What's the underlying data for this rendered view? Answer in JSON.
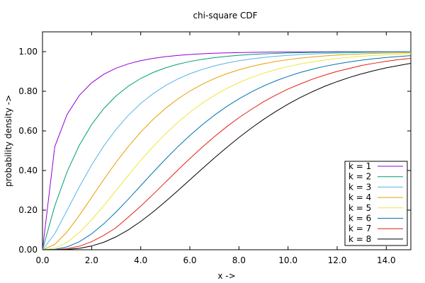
{
  "chart_data": {
    "type": "line",
    "title": "chi-square CDF",
    "xlabel": "x ->",
    "ylabel": "probability density ->",
    "xlim": [
      0,
      15
    ],
    "ylim": [
      0,
      1.1
    ],
    "x_ticks": [
      "0.0",
      "2.0",
      "4.0",
      "6.0",
      "8.0",
      "10.0",
      "12.0",
      "14.0"
    ],
    "y_ticks": [
      "0.00",
      "0.20",
      "0.40",
      "0.60",
      "0.80",
      "1.00"
    ],
    "grid": false,
    "legend_position": "bottom-right",
    "x": [
      0.0,
      0.5,
      1.0,
      1.5,
      2.0,
      2.5,
      3.0,
      3.5,
      4.0,
      4.5,
      5.0,
      5.5,
      6.0,
      6.5,
      7.0,
      7.5,
      8.0,
      8.5,
      9.0,
      9.5,
      10.0,
      10.5,
      11.0,
      11.5,
      12.0,
      12.5,
      13.0,
      13.5,
      14.0,
      14.5,
      15.0
    ],
    "series": [
      {
        "name": "k = 1",
        "color": "#9400d3",
        "values": [
          0.0,
          0.5205,
          0.6827,
          0.7793,
          0.8427,
          0.8862,
          0.9167,
          0.9386,
          0.9545,
          0.9661,
          0.9747,
          0.981,
          0.9857,
          0.9892,
          0.9918,
          0.9938,
          0.9953,
          0.9965,
          0.9973,
          0.9979,
          0.9984,
          0.9988,
          0.9991,
          0.9993,
          0.9995,
          0.9996,
          0.9997,
          0.9998,
          0.9998,
          0.9999,
          0.9999
        ]
      },
      {
        "name": "k = 2",
        "color": "#009e73",
        "values": [
          0.0,
          0.2212,
          0.3935,
          0.5276,
          0.6321,
          0.7135,
          0.7769,
          0.8262,
          0.8647,
          0.8946,
          0.9179,
          0.9361,
          0.9502,
          0.9612,
          0.9698,
          0.9765,
          0.9817,
          0.9857,
          0.9889,
          0.9913,
          0.9933,
          0.9948,
          0.9959,
          0.9968,
          0.9975,
          0.9981,
          0.9985,
          0.9988,
          0.9991,
          0.9993,
          0.9994
        ]
      },
      {
        "name": "k = 3",
        "color": "#56b4e9",
        "values": [
          0.0,
          0.0811,
          0.1987,
          0.3177,
          0.4276,
          0.5247,
          0.6084,
          0.6792,
          0.7385,
          0.7877,
          0.8282,
          0.8614,
          0.8884,
          0.9103,
          0.9281,
          0.9424,
          0.954,
          0.9633,
          0.9707,
          0.9767,
          0.9814,
          0.9852,
          0.9883,
          0.9907,
          0.9926,
          0.9941,
          0.9954,
          0.9963,
          0.9971,
          0.9977,
          0.9982
        ]
      },
      {
        "name": "k = 4",
        "color": "#e69f00",
        "values": [
          0.0,
          0.0265,
          0.0902,
          0.1734,
          0.2642,
          0.3554,
          0.4422,
          0.5221,
          0.594,
          0.6575,
          0.7127,
          0.7603,
          0.8009,
          0.8352,
          0.8641,
          0.8883,
          0.9084,
          0.9251,
          0.9389,
          0.9503,
          0.9596,
          0.9672,
          0.9734,
          0.9785,
          0.9826,
          0.986,
          0.9887,
          0.9909,
          0.9927,
          0.9941,
          0.9953
        ]
      },
      {
        "name": "k = 5",
        "color": "#f0e442",
        "values": [
          0.0,
          0.0079,
          0.0374,
          0.0869,
          0.1509,
          0.2235,
          0.3,
          0.3766,
          0.4506,
          0.5201,
          0.5841,
          0.6421,
          0.6938,
          0.7394,
          0.7794,
          0.814,
          0.8438,
          0.8694,
          0.8909,
          0.9093,
          0.9248,
          0.9378,
          0.9486,
          0.9577,
          0.9652,
          0.9715,
          0.9766,
          0.9809,
          0.9844,
          0.9873,
          0.9896
        ]
      },
      {
        "name": "k = 6",
        "color": "#0072b2",
        "values": [
          0.0,
          0.0022,
          0.0144,
          0.0405,
          0.0803,
          0.1315,
          0.1912,
          0.256,
          0.3233,
          0.3907,
          0.4562,
          0.5185,
          0.5768,
          0.6304,
          0.6792,
          0.7229,
          0.7619,
          0.7962,
          0.8264,
          0.8527,
          0.8753,
          0.895,
          0.9116,
          0.9261,
          0.938,
          0.9484,
          0.957,
          0.9643,
          0.9704,
          0.9755,
          0.9797
        ]
      },
      {
        "name": "k = 7",
        "color": "#e51e10",
        "values": [
          0.0,
          0.0006,
          0.0052,
          0.0177,
          0.0405,
          0.0729,
          0.1116,
          0.1654,
          0.2202,
          0.2793,
          0.34,
          0.4009,
          0.4603,
          0.517,
          0.5711,
          0.6208,
          0.6669,
          0.708,
          0.747,
          0.7806,
          0.8114,
          0.837,
          0.8614,
          0.8816,
          0.9003,
          0.9152,
          0.9302,
          0.9413,
          0.9512,
          0.96,
          0.9662
        ]
      },
      {
        "name": "k = 8",
        "color": "#000000",
        "values": [
          0.0,
          0.0002,
          0.0018,
          0.0073,
          0.019,
          0.038,
          0.0656,
          0.1008,
          0.1429,
          0.1906,
          0.2424,
          0.297,
          0.3528,
          0.4086,
          0.4634,
          0.5162,
          0.5665,
          0.6138,
          0.6577,
          0.6981,
          0.735,
          0.7685,
          0.7983,
          0.8254,
          0.8488,
          0.8699,
          0.8881,
          0.904,
          0.9182,
          0.93,
          0.9409
        ]
      }
    ]
  }
}
